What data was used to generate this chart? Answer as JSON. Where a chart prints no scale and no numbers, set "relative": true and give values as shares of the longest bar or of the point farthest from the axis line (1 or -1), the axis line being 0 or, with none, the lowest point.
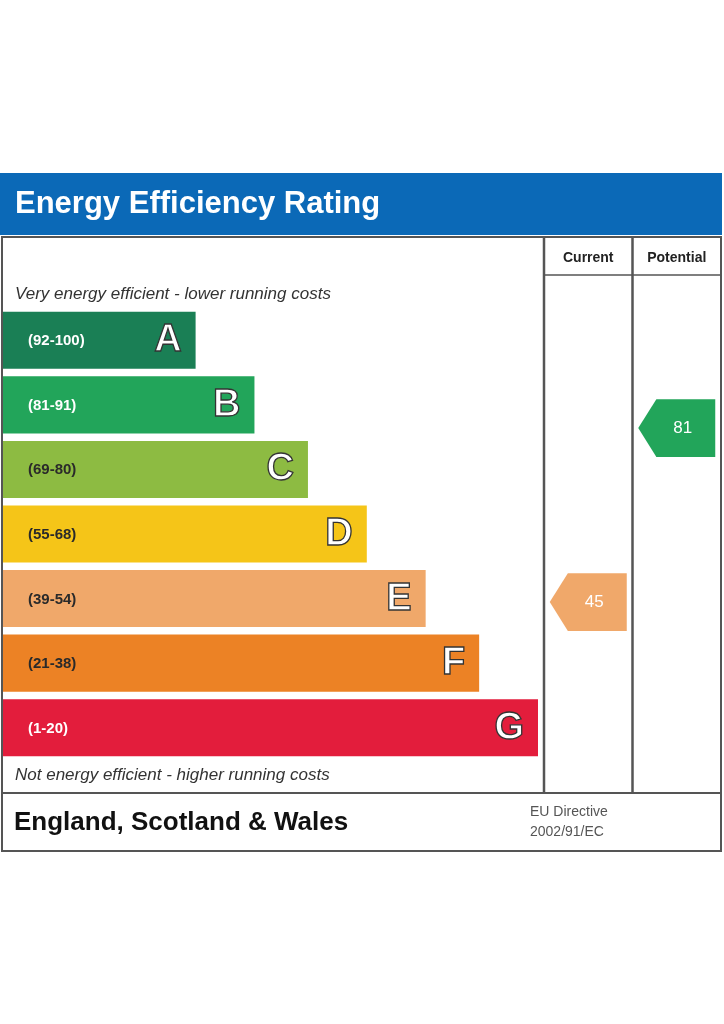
{
  "chart_data": [
    {
      "type": "bar",
      "orientation": "horizontal",
      "relative": true,
      "title": "Energy Efficiency Rating",
      "categories": [
        "A",
        "B",
        "C",
        "D",
        "E",
        "F",
        "G"
      ],
      "values": [
        0.36,
        0.47,
        0.57,
        0.68,
        0.79,
        0.89,
        1
      ],
      "colors": [
        "#1a7f55",
        "#22a55a",
        "#8dbb42",
        "#f5c518",
        "#f0a86a",
        "#ec8225",
        "#e31d3c"
      ],
      "annotations": [
        "Very energy efficient - lower running costs",
        "(92-100)",
        "(81-91)",
        "(69-80)",
        "(55-68)",
        "(39-54)",
        "(21-38)",
        "(1-20)",
        "Not energy efficient - higher running costs",
        "England, Scotland & Wales"
      ]
    },
    {
      "type": "heatmap",
      "categories": [
        "Current",
        "Potential"
      ],
      "y_categories": [
        null,
        null
      ],
      "cells": [
        [
          null,
          81
        ],
        [
          45,
          null
        ]
      ],
      "colors": [
        "#22a55a",
        "#f0a86a"
      ],
      "data_labels": true,
      "annotations": [
        "EU Directive\n2002/91/EC"
      ]
    }
  ]
}
